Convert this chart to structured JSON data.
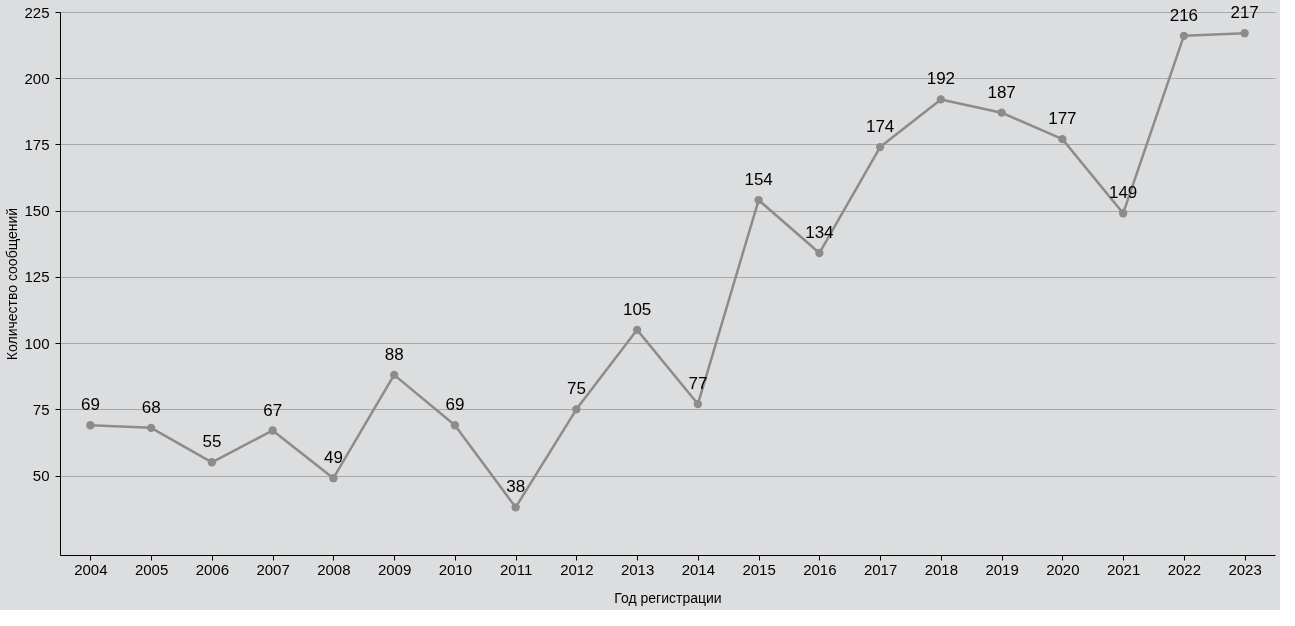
{
  "chart_data": {
    "type": "line",
    "xlabel": "Год регистрации",
    "ylabel": "Количество сообщений",
    "categories": [
      "2004",
      "2005",
      "2006",
      "2007",
      "2008",
      "2009",
      "2010",
      "2011",
      "2012",
      "2013",
      "2014",
      "2015",
      "2016",
      "2017",
      "2018",
      "2019",
      "2020",
      "2021",
      "2022",
      "2023"
    ],
    "series": [
      {
        "color": "#8c8c8c",
        "values": [
          69,
          68,
          55,
          67,
          49,
          88,
          69,
          38,
          75,
          105,
          77,
          154,
          134,
          174,
          192,
          187,
          177,
          149,
          216,
          217
        ]
      }
    ],
    "ylim": [
      20,
      225
    ],
    "yticks": [
      50,
      75,
      100,
      125,
      150,
      175,
      200,
      225
    ],
    "grid": "y",
    "marker": "circle",
    "line_style": "solid",
    "data_labels": true
  }
}
